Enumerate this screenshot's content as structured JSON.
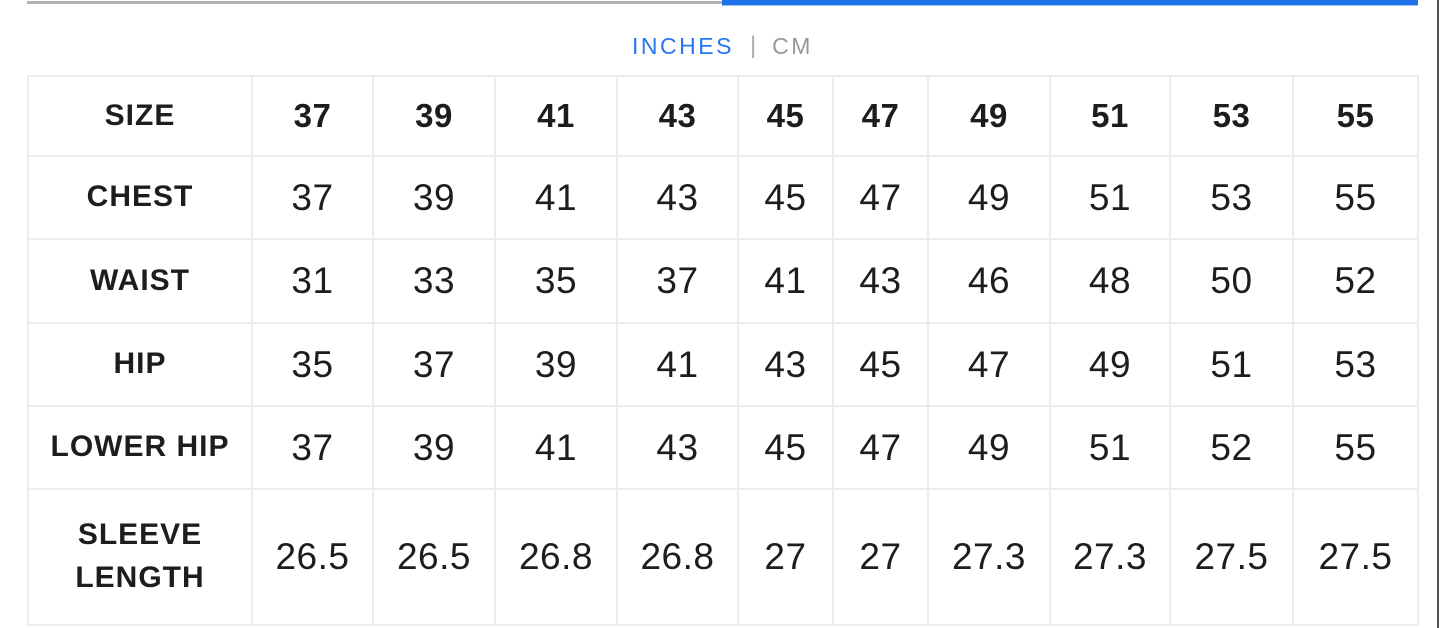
{
  "unit_toggle": {
    "options": [
      {
        "label": "INCHES",
        "active": true
      },
      {
        "label": "CM",
        "active": false
      }
    ],
    "separator": "|",
    "active_color": "#2677f0",
    "inactive_color": "#97999c"
  },
  "top_scroll_indicator": {
    "track_color": "#b2b2b2",
    "thumb_color": "#1e72e8"
  },
  "chart_data": {
    "type": "table",
    "title": "Size chart",
    "selected_unit": "INCHES",
    "columns": [
      "SIZE",
      "37",
      "39",
      "41",
      "43",
      "45",
      "47",
      "49",
      "51",
      "53",
      "55"
    ],
    "rows": [
      {
        "label_lines": [
          "CHEST"
        ],
        "values": [
          "37",
          "39",
          "41",
          "43",
          "45",
          "47",
          "49",
          "51",
          "53",
          "55"
        ]
      },
      {
        "label_lines": [
          "WAIST"
        ],
        "values": [
          "31",
          "33",
          "35",
          "37",
          "41",
          "43",
          "46",
          "48",
          "50",
          "52"
        ]
      },
      {
        "label_lines": [
          "HIP"
        ],
        "values": [
          "35",
          "37",
          "39",
          "41",
          "43",
          "45",
          "47",
          "49",
          "51",
          "53"
        ]
      },
      {
        "label_lines": [
          "LOWER HIP"
        ],
        "values": [
          "37",
          "39",
          "41",
          "43",
          "45",
          "47",
          "49",
          "51",
          "52",
          "55"
        ]
      },
      {
        "label_lines": [
          "SLEEVE",
          "LENGTH"
        ],
        "values": [
          "26.5",
          "26.5",
          "26.8",
          "26.8",
          "27",
          "27",
          "27.3",
          "27.3",
          "27.5",
          "27.5"
        ]
      }
    ]
  }
}
